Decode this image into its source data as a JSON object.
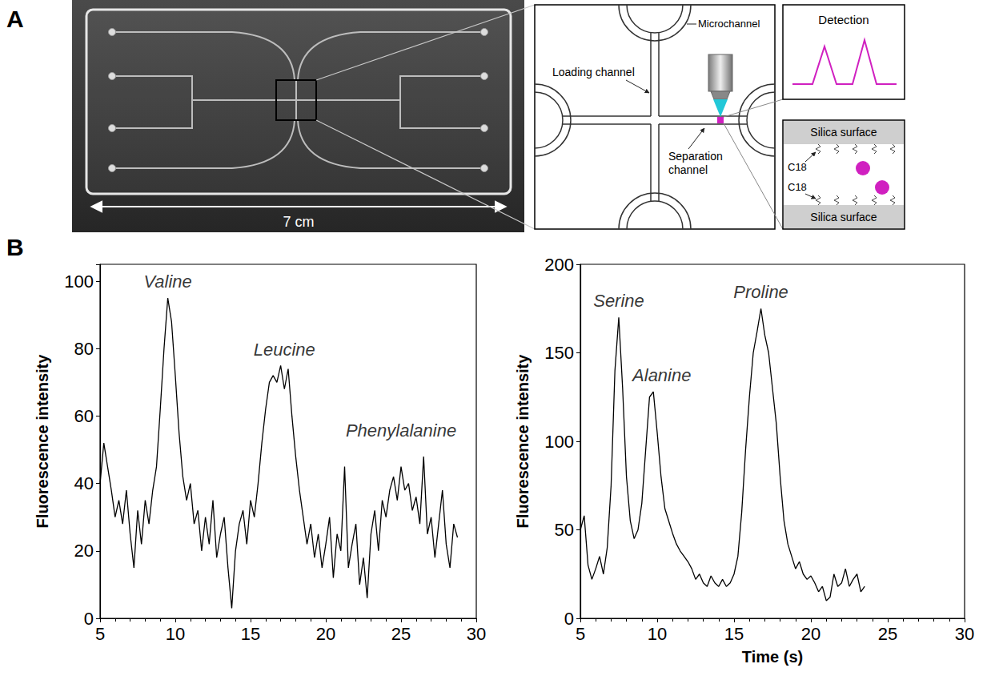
{
  "figure": {
    "panels": [
      {
        "letter": "A",
        "scale_bar": "7 cm",
        "labels": {
          "microchannel": "Microchannel",
          "loading_channel": "Loading channel",
          "separation_channel": "Separation channel",
          "detection": "Detection",
          "silica_surface_top": "Silica surface",
          "silica_surface_bottom": "Silica surface",
          "c18_top": "C18",
          "c18_bottom": "C18"
        }
      },
      {
        "letter": "B"
      }
    ]
  },
  "chart_data": [
    {
      "type": "line",
      "y_label": "Fluorescence intensity",
      "color": "#000000",
      "line_style": "solid",
      "grid": false,
      "xlim": [
        5,
        30
      ],
      "xticks": [
        5,
        10,
        15,
        20,
        25,
        30
      ],
      "ylim": [
        0,
        105
      ],
      "yticks": [
        0,
        20,
        40,
        60,
        80,
        100
      ],
      "x": [
        5,
        5.25,
        5.5,
        5.75,
        6,
        6.25,
        6.5,
        6.75,
        7,
        7.25,
        7.5,
        7.75,
        8,
        8.25,
        8.5,
        8.75,
        9,
        9.25,
        9.5,
        9.75,
        10,
        10.25,
        10.5,
        10.75,
        11,
        11.25,
        11.5,
        11.75,
        12,
        12.25,
        12.5,
        12.75,
        13,
        13.25,
        13.5,
        13.75,
        14,
        14.25,
        14.5,
        14.75,
        15,
        15.25,
        15.5,
        15.75,
        16,
        16.25,
        16.5,
        16.75,
        17,
        17.25,
        17.5,
        17.75,
        18,
        18.25,
        18.5,
        18.75,
        19,
        19.25,
        19.5,
        19.75,
        20,
        20.25,
        20.5,
        20.75,
        21,
        21.25,
        21.5,
        21.75,
        22,
        22.25,
        22.5,
        22.75,
        23,
        23.25,
        23.5,
        23.75,
        24,
        24.25,
        24.5,
        24.75,
        25,
        25.25,
        25.5,
        25.75,
        26,
        26.25,
        26.5,
        26.75,
        27,
        27.25,
        27.5,
        27.75,
        28,
        28.25,
        28.5,
        28.75
      ],
      "values": [
        40,
        52,
        45,
        38,
        30,
        35,
        28,
        38,
        25,
        15,
        32,
        22,
        35,
        28,
        38,
        45,
        62,
        80,
        95,
        88,
        72,
        55,
        42,
        35,
        40,
        28,
        32,
        20,
        30,
        22,
        35,
        18,
        25,
        30,
        15,
        3,
        20,
        28,
        32,
        22,
        35,
        30,
        40,
        52,
        62,
        70,
        72,
        70,
        75,
        68,
        74,
        60,
        48,
        38,
        30,
        22,
        28,
        18,
        25,
        15,
        22,
        30,
        12,
        25,
        20,
        45,
        15,
        22,
        28,
        10,
        18,
        6,
        25,
        32,
        20,
        35,
        30,
        38,
        42,
        35,
        45,
        38,
        40,
        32,
        36,
        28,
        48,
        25,
        30,
        18,
        28,
        38,
        22,
        15,
        28,
        24
      ],
      "annotations": [
        {
          "text": "Valine",
          "x": 9.5,
          "y": 96
        },
        {
          "text": "Leucine",
          "x": 17.25,
          "y": 76
        },
        {
          "text": "Phenylalanine",
          "x": 25,
          "y": 52
        }
      ]
    },
    {
      "type": "line",
      "x_label": "Time (s)",
      "y_label": "Fluorescence intensity",
      "color": "#000000",
      "line_style": "solid",
      "grid": false,
      "xlim": [
        5,
        30
      ],
      "xticks": [
        5,
        10,
        15,
        20,
        25,
        30
      ],
      "ylim": [
        0,
        200
      ],
      "yticks": [
        0,
        50,
        100,
        150,
        200
      ],
      "x": [
        5,
        5.25,
        5.5,
        5.75,
        6,
        6.25,
        6.5,
        6.75,
        7,
        7.25,
        7.5,
        7.75,
        8,
        8.25,
        8.5,
        8.75,
        9,
        9.25,
        9.5,
        9.75,
        10,
        10.25,
        10.5,
        10.75,
        11,
        11.25,
        11.5,
        11.75,
        12,
        12.25,
        12.5,
        12.75,
        13,
        13.25,
        13.5,
        13.75,
        14,
        14.25,
        14.5,
        14.75,
        15,
        15.25,
        15.5,
        15.75,
        16,
        16.25,
        16.5,
        16.75,
        17,
        17.25,
        17.5,
        17.75,
        18,
        18.25,
        18.5,
        18.75,
        19,
        19.25,
        19.5,
        19.75,
        20,
        20.25,
        20.5,
        20.75,
        21,
        21.25,
        21.5,
        21.75,
        22,
        22.25,
        22.5,
        22.75,
        23,
        23.25,
        23.5
      ],
      "values": [
        50,
        58,
        30,
        22,
        28,
        35,
        25,
        40,
        75,
        140,
        170,
        130,
        80,
        55,
        45,
        50,
        65,
        95,
        125,
        128,
        105,
        80,
        62,
        55,
        48,
        42,
        38,
        35,
        32,
        28,
        22,
        25,
        20,
        18,
        24,
        20,
        18,
        22,
        18,
        20,
        25,
        35,
        60,
        95,
        125,
        150,
        162,
        175,
        160,
        150,
        130,
        110,
        80,
        55,
        42,
        35,
        28,
        32,
        25,
        22,
        24,
        20,
        15,
        18,
        10,
        12,
        25,
        18,
        20,
        28,
        18,
        22,
        25,
        15,
        18
      ],
      "annotations": [
        {
          "text": "Serine",
          "x": 7.5,
          "y": 172
        },
        {
          "text": "Alanine",
          "x": 10.3,
          "y": 130
        },
        {
          "text": "Proline",
          "x": 16.75,
          "y": 177
        }
      ]
    }
  ]
}
